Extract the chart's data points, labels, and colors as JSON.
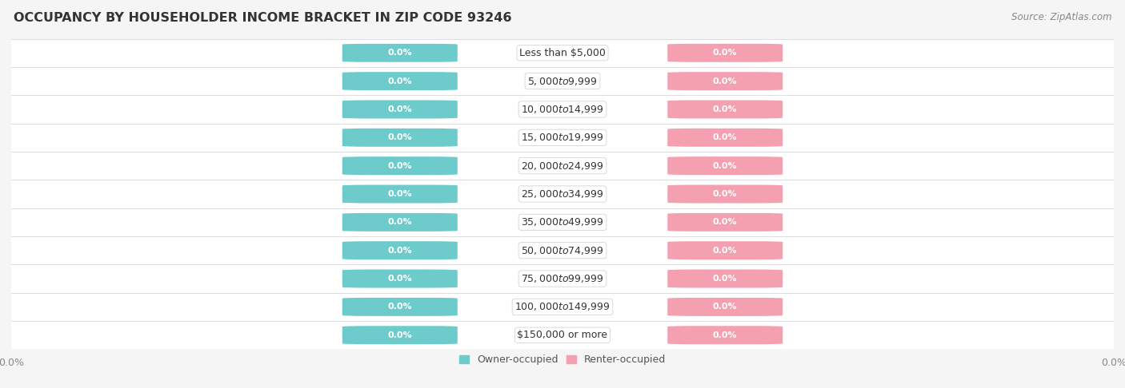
{
  "title": "OCCUPANCY BY HOUSEHOLDER INCOME BRACKET IN ZIP CODE 93246",
  "source": "Source: ZipAtlas.com",
  "categories": [
    "Less than $5,000",
    "$5,000 to $9,999",
    "$10,000 to $14,999",
    "$15,000 to $19,999",
    "$20,000 to $24,999",
    "$25,000 to $34,999",
    "$35,000 to $49,999",
    "$50,000 to $74,999",
    "$75,000 to $99,999",
    "$100,000 to $149,999",
    "$150,000 or more"
  ],
  "owner_values": [
    0.0,
    0.0,
    0.0,
    0.0,
    0.0,
    0.0,
    0.0,
    0.0,
    0.0,
    0.0,
    0.0
  ],
  "renter_values": [
    0.0,
    0.0,
    0.0,
    0.0,
    0.0,
    0.0,
    0.0,
    0.0,
    0.0,
    0.0,
    0.0
  ],
  "owner_color": "#6dcccb",
  "renter_color": "#f4a0b0",
  "owner_label": "Owner-occupied",
  "renter_label": "Renter-occupied",
  "bg_color": "#f5f5f5",
  "row_bg_color": "#ffffff",
  "title_fontsize": 11.5,
  "source_fontsize": 8.5,
  "value_fontsize": 8,
  "cat_fontsize": 9,
  "legend_fontsize": 9
}
